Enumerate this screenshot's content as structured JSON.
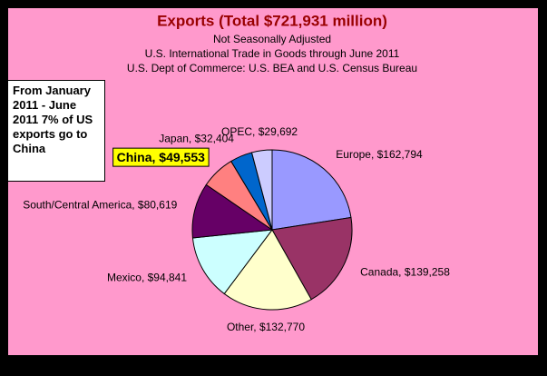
{
  "chart_data": {
    "type": "pie",
    "title": "Exports (Total $721,931 million)",
    "subtitles": [
      "Not Seasonally Adjusted",
      "U.S. International Trade in Goods through June 2011",
      "U.S. Dept of Commerce: U.S. BEA and U.S. Census Bureau"
    ],
    "annotation": "From  January 2011 - June 2011 7% of US exports go to China",
    "values": [
      162794,
      139258,
      132770,
      94841,
      80619,
      49553,
      32404,
      29692
    ],
    "value_labels": [
      "Europe, $162,794",
      "Canada, $139,258",
      "Other, $132,770",
      "Mexico, $94,841",
      "South/Central America, $80,619",
      "China, $49,553",
      "Japan, $32,404",
      "OPEC, $29,692"
    ],
    "colors": [
      "#9999ff",
      "#993366",
      "#ffffcc",
      "#ccffff",
      "#660066",
      "#ff8080",
      "#0066cc",
      "#ccccff"
    ],
    "highlight": {
      "index": 5,
      "color": "#ffff00"
    }
  }
}
